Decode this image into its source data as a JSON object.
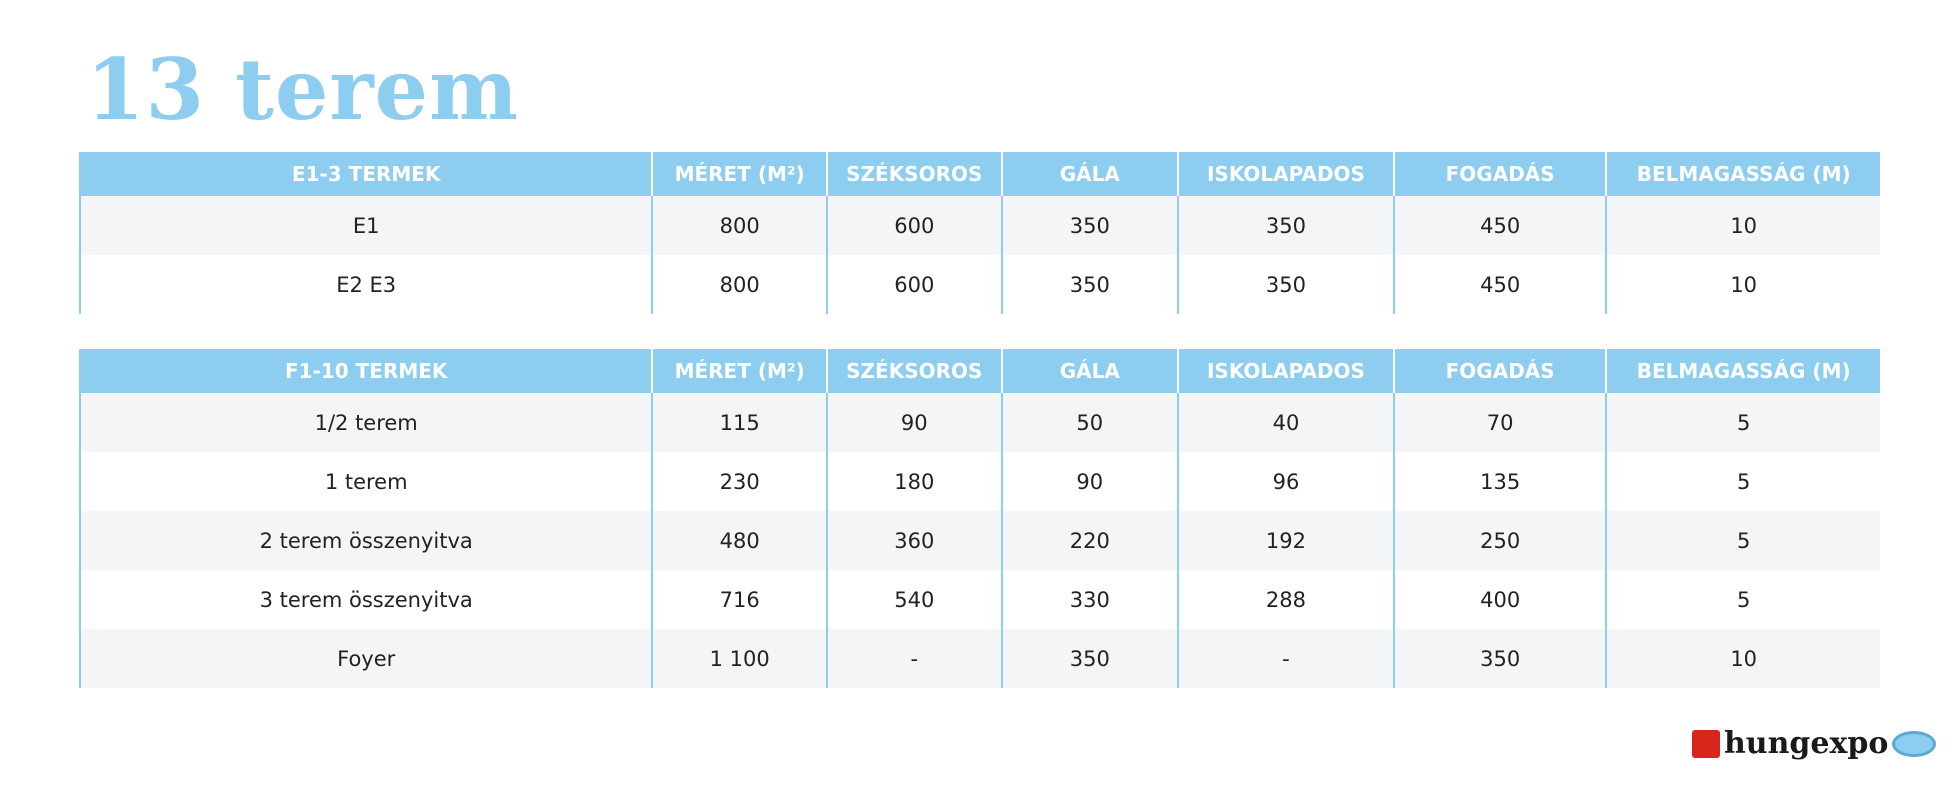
{
  "title": "13 terem",
  "tables": [
    {
      "header": [
        "E1-3 TERMEK",
        "MÉRET (M²)",
        "SZÉKSOROS",
        "GÁLA",
        "ISKOLAPADOS",
        "FOGADÁS",
        "BELMAGASSÁG (M)"
      ],
      "rows": [
        [
          "E1",
          "800",
          "600",
          "350",
          "350",
          "450",
          "10"
        ],
        [
          "E2 E3",
          "800",
          "600",
          "350",
          "350",
          "450",
          "10"
        ]
      ]
    },
    {
      "header": [
        "F1-10 TERMEK",
        "MÉRET (M²)",
        "SZÉKSOROS",
        "GÁLA",
        "ISKOLAPADOS",
        "FOGADÁS",
        "BELMAGASSÁG (M)"
      ],
      "rows": [
        [
          "1/2 terem",
          "115",
          "90",
          "50",
          "40",
          "70",
          "5"
        ],
        [
          "1 terem",
          "230",
          "180",
          "90",
          "96",
          "135",
          "5"
        ],
        [
          "2 terem összenyitva",
          "480",
          "360",
          "220",
          "192",
          "250",
          "5"
        ],
        [
          "3 terem összenyitva",
          "716",
          "540",
          "330",
          "288",
          "400",
          "5"
        ],
        [
          "Foyer",
          "1 100",
          "-",
          "350",
          "-",
          "350",
          "10"
        ]
      ]
    }
  ],
  "logo": "hungexpo"
}
